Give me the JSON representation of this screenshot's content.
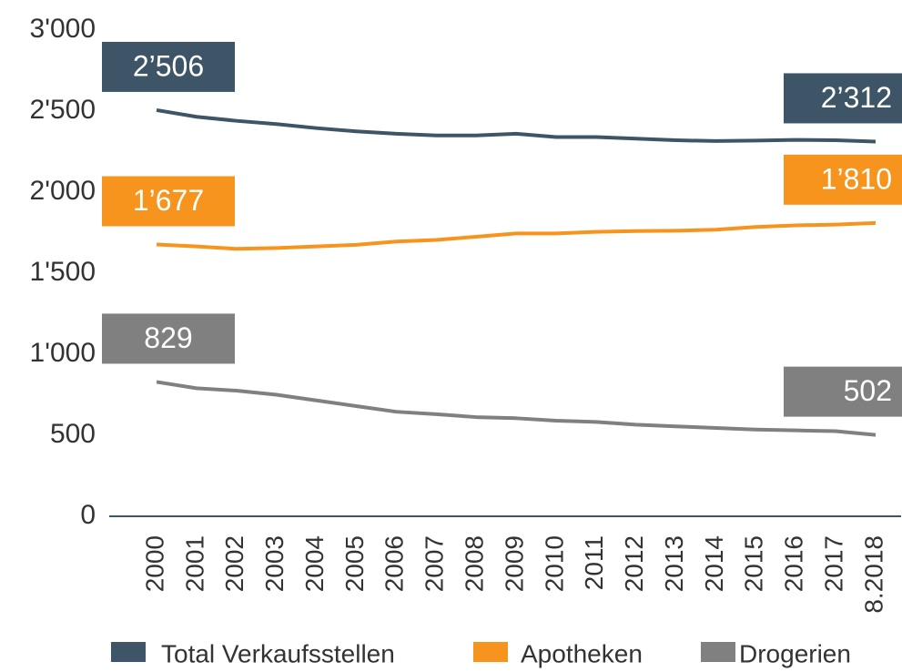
{
  "chart_data": {
    "type": "line",
    "categories": [
      "2000",
      "2001",
      "2002",
      "2003",
      "2004",
      "2005",
      "2006",
      "2007",
      "2008",
      "2009",
      "2010",
      "2011",
      "2012",
      "2013",
      "2014",
      "2015",
      "2016",
      "2017",
      "8.2018"
    ],
    "ylim": [
      0,
      3000
    ],
    "yticks": [
      0,
      500,
      {
        "value": 1000,
        "label": "1'000"
      },
      {
        "value": 1500,
        "label": "1'500"
      },
      {
        "value": 2000,
        "label": "2'000"
      },
      {
        "value": 2500,
        "label": "2'500"
      },
      {
        "value": 3000,
        "label": "3'000"
      }
    ],
    "grid": false,
    "legend": "bottom",
    "series": [
      {
        "name": "Total Verkaufsstellen",
        "color": "#3d5566",
        "values": [
          2506,
          2465,
          2440,
          2420,
          2395,
          2375,
          2360,
          2350,
          2350,
          2360,
          2340,
          2340,
          2330,
          2320,
          2315,
          2318,
          2322,
          2320,
          2312
        ],
        "value_labels": [
          "2’506",
          null,
          null,
          null,
          null,
          null,
          null,
          null,
          null,
          null,
          null,
          null,
          null,
          null,
          null,
          null,
          null,
          null,
          "2’312"
        ]
      },
      {
        "name": "Apotheken",
        "color": "#f7941d",
        "values": [
          1677,
          1665,
          1650,
          1655,
          1665,
          1675,
          1695,
          1705,
          1725,
          1745,
          1745,
          1755,
          1760,
          1762,
          1768,
          1785,
          1795,
          1800,
          1810
        ],
        "value_labels": [
          "1’677",
          null,
          null,
          null,
          null,
          null,
          null,
          null,
          null,
          null,
          null,
          null,
          null,
          null,
          null,
          null,
          null,
          null,
          "1’810"
        ]
      },
      {
        "name": "Drogerien",
        "color": "#808080",
        "values": [
          829,
          790,
          775,
          750,
          715,
          680,
          645,
          630,
          612,
          605,
          590,
          582,
          565,
          555,
          545,
          535,
          530,
          525,
          502
        ],
        "value_labels": [
          "829",
          null,
          null,
          null,
          null,
          null,
          null,
          null,
          null,
          null,
          null,
          null,
          null,
          null,
          null,
          null,
          null,
          null,
          "502"
        ]
      }
    ]
  }
}
